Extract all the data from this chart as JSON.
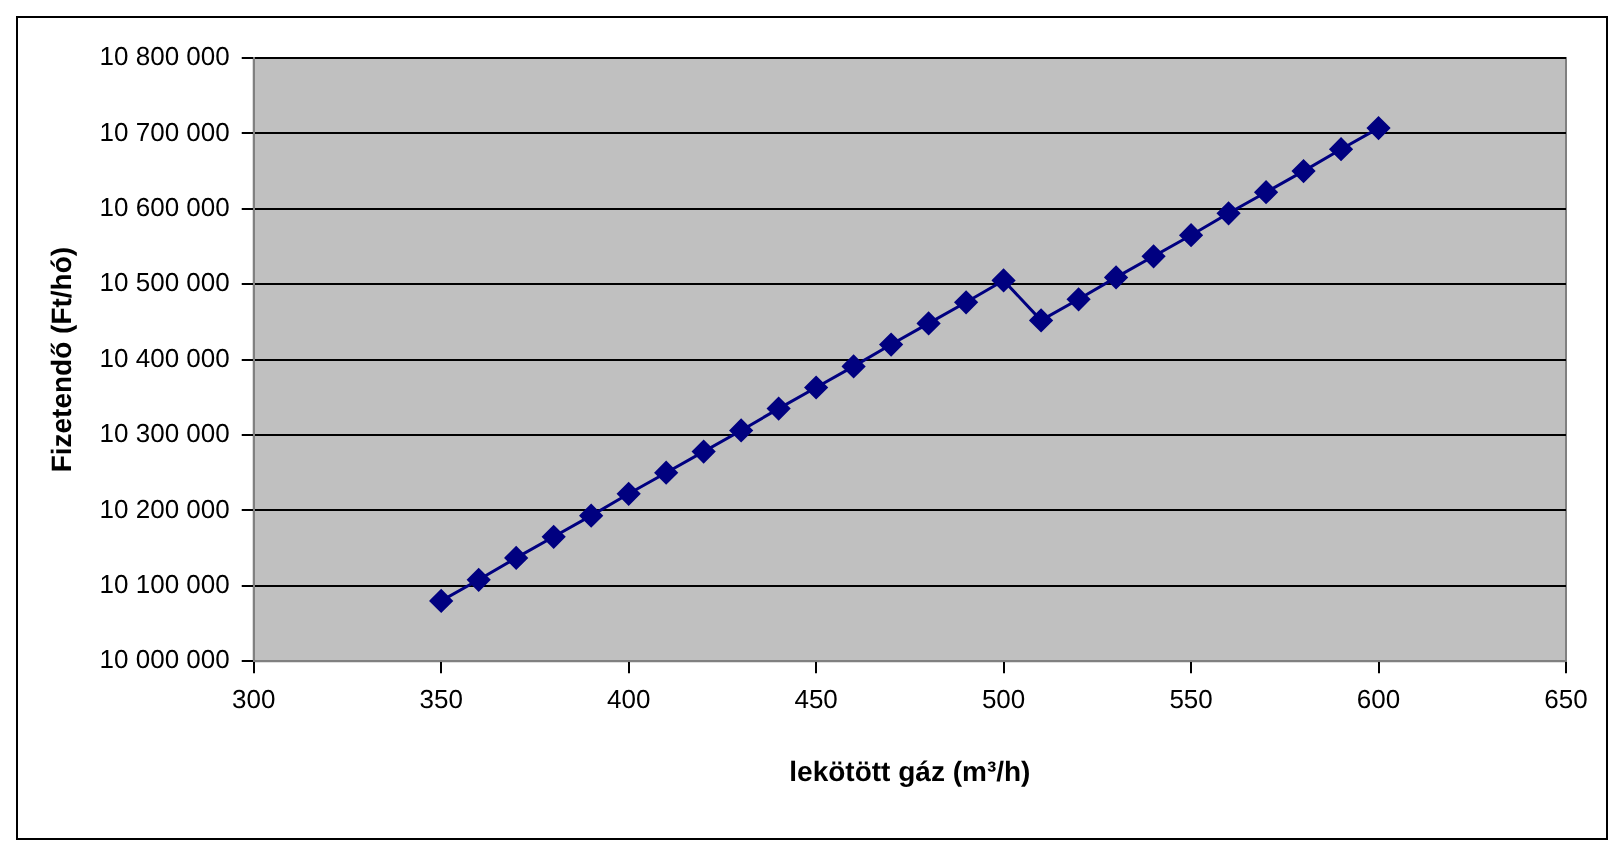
{
  "chart_data": {
    "type": "line",
    "xlabel": "lekötött gáz (m³/h)",
    "ylabel": "Fizetendő (Ft/hó)",
    "x": [
      350,
      360,
      370,
      380,
      390,
      400,
      410,
      420,
      430,
      440,
      450,
      460,
      470,
      480,
      490,
      500,
      510,
      520,
      530,
      540,
      550,
      560,
      570,
      580,
      590,
      600
    ],
    "series": [
      {
        "color": "#000080",
        "values": [
          10080000,
          10108000,
          10137000,
          10165000,
          10193000,
          10222000,
          10250000,
          10278000,
          10306000,
          10335000,
          10363000,
          10391000,
          10420000,
          10448000,
          10476000,
          10505000,
          10452000,
          10480000,
          10509000,
          10537000,
          10565000,
          10594000,
          10622000,
          10650000,
          10679000,
          10707000
        ]
      }
    ],
    "xlim": [
      300,
      650
    ],
    "xticks": [
      300,
      350,
      400,
      450,
      500,
      550,
      600,
      650
    ],
    "ylim": [
      10000000,
      10800000
    ],
    "yticks": [
      {
        "value": 10000000,
        "label": "10 000 000"
      },
      {
        "value": 10100000,
        "label": "10 100 000"
      },
      {
        "value": 10200000,
        "label": "10 200 000"
      },
      {
        "value": 10300000,
        "label": "10 300 000"
      },
      {
        "value": 10400000,
        "label": "10 400 000"
      },
      {
        "value": 10500000,
        "label": "10 500 000"
      },
      {
        "value": 10600000,
        "label": "10 600 000"
      },
      {
        "value": 10700000,
        "label": "10 700 000"
      },
      {
        "value": 10800000,
        "label": "10 800 000"
      }
    ],
    "grid": "y",
    "legend": false,
    "marker": "diamond",
    "line_style": "solid"
  }
}
